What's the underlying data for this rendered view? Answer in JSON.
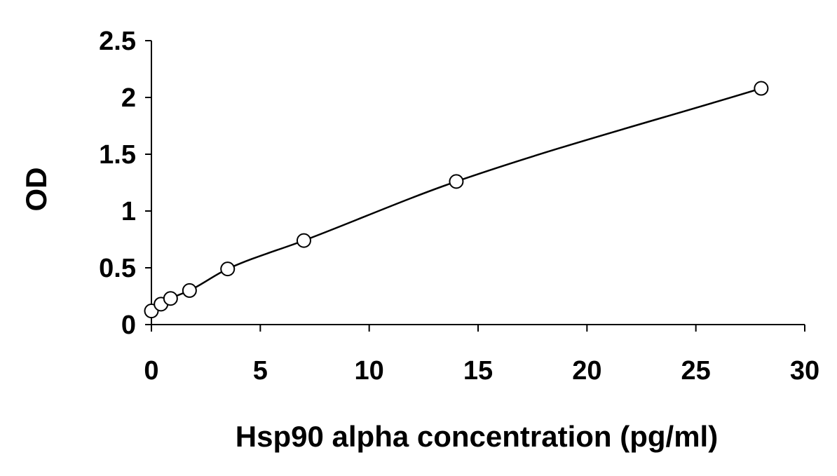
{
  "chart_data": {
    "type": "scatter",
    "title": "",
    "xlabel": "Hsp90 alpha concentration (pg/ml)",
    "ylabel": "OD",
    "xlim": [
      0,
      30
    ],
    "ylim": [
      0,
      2.5
    ],
    "x_ticks": [
      "0",
      "5",
      "10",
      "15",
      "20",
      "25",
      "30"
    ],
    "y_ticks": [
      "0",
      "0.5",
      "1",
      "1.5",
      "2",
      "2.5"
    ],
    "grid": false,
    "legend": "none",
    "series": [
      {
        "x": [
          0,
          0.44,
          0.88,
          1.75,
          3.5,
          7,
          14,
          28
        ],
        "y": [
          0.12,
          0.18,
          0.23,
          0.3,
          0.49,
          0.74,
          1.26,
          2.08
        ],
        "marker": "open-circle",
        "fit_line": "smooth-curve"
      }
    ],
    "colors": {
      "axis": "#000000",
      "marker_stroke": "#000000",
      "marker_fill": "#ffffff",
      "line": "#000000"
    }
  }
}
